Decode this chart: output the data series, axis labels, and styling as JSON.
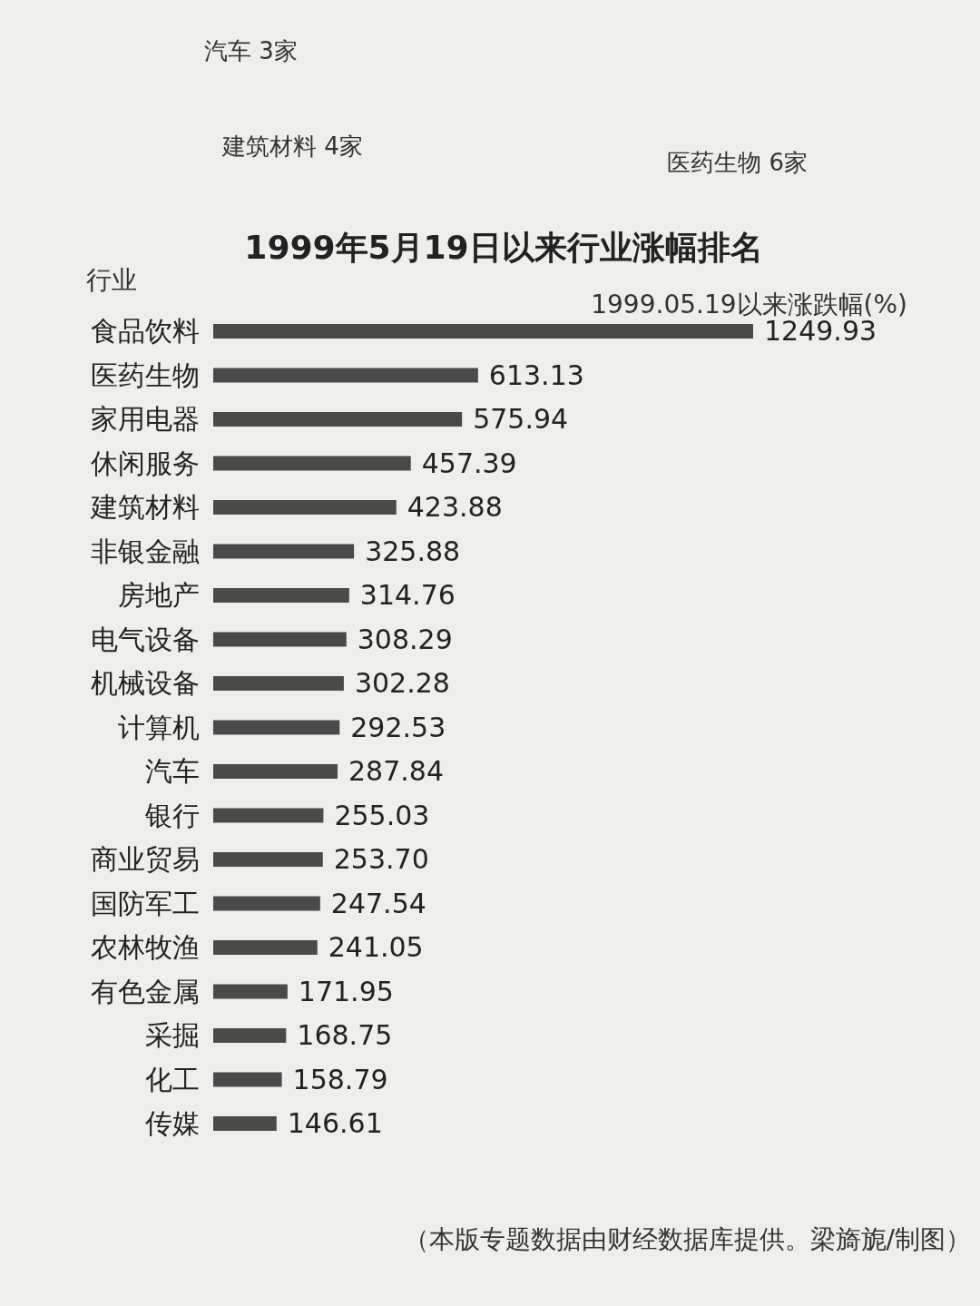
{
  "chart_data": [
    {
      "type": "other",
      "annotations": [
        "汽车 3家",
        "建筑材料 4家",
        "医药生物 6家"
      ]
    },
    {
      "type": "bar",
      "orientation": "horizontal",
      "title": "1999年5月19日以来行业涨幅排名",
      "ylabel": "行业",
      "xlabel": "1999.05.19以来涨跌幅(%)",
      "categories": [
        "食品饮料",
        "医药生物",
        "家用电器",
        "休闲服务",
        "建筑材料",
        "非银金融",
        "房地产",
        "电气设备",
        "机械设备",
        "计算机",
        "汽车",
        "银行",
        "商业贸易",
        "国防军工",
        "农林牧渔",
        "有色金属",
        "采掘",
        "化工",
        "传媒"
      ],
      "values": [
        1249.93,
        613.13,
        575.94,
        457.39,
        423.88,
        325.88,
        314.76,
        308.29,
        302.28,
        292.53,
        287.84,
        255.03,
        253.7,
        247.54,
        241.05,
        171.95,
        168.75,
        158.79,
        146.61
      ],
      "color": "#4a4a4a",
      "value_labels": [
        "1249.93",
        "613.13",
        "575.94",
        "457.39",
        "423.88",
        "325.88",
        "314.76",
        "308.29",
        "302.28",
        "292.53",
        "287.84",
        "255.03",
        "253.70",
        "247.54",
        "241.05",
        "171.95",
        "168.75",
        "158.79",
        "146.61"
      ],
      "annotations": [
        "（本版专题数据由财经数据库提供。梁旖旎/制图）"
      ]
    }
  ]
}
